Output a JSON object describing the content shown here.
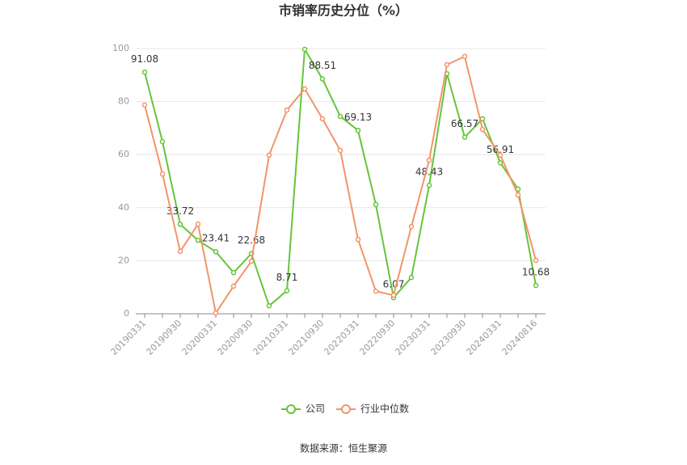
{
  "chart_data": {
    "type": "line",
    "title": "市销率历史分位（%）",
    "source": "数据来源：恒生聚源",
    "categories": [
      "20190331",
      null,
      "20190930",
      null,
      "20200331",
      null,
      "20200930",
      null,
      "20210331",
      null,
      "20210930",
      null,
      "20220331",
      null,
      "20220930",
      null,
      "20230331",
      null,
      "20230930",
      null,
      "20240331",
      null,
      "20240816"
    ],
    "series": [
      {
        "name": "公司",
        "color": "#66c43a",
        "values": [
          91.08,
          64.9,
          33.72,
          27.7,
          23.41,
          15.5,
          22.68,
          3.0,
          8.71,
          99.7,
          88.51,
          74.4,
          69.13,
          41.2,
          6.07,
          13.7,
          48.43,
          90.5,
          66.57,
          73.5,
          56.91,
          47.0,
          10.68
        ],
        "value_labels": [
          "91.08",
          null,
          "33.72",
          null,
          "23.41",
          null,
          "22.68",
          null,
          "8.71",
          null,
          "88.51",
          null,
          "69.13",
          null,
          "6.07",
          null,
          "48.43",
          null,
          "66.57",
          null,
          "56.91",
          null,
          "10.68"
        ]
      },
      {
        "name": "行业中位数",
        "color": "#f39468",
        "values": [
          78.7,
          52.7,
          23.5,
          33.8,
          0.3,
          10.4,
          19.8,
          59.8,
          76.8,
          84.8,
          73.5,
          61.6,
          28.0,
          8.5,
          7.0,
          32.9,
          57.9,
          93.9,
          97.0,
          69.5,
          59.8,
          44.8,
          20.1
        ]
      }
    ],
    "ylim": [
      0,
      100
    ],
    "yticks": [
      0,
      20,
      40,
      60,
      80,
      100
    ],
    "grid": true,
    "legend": "bottom"
  }
}
